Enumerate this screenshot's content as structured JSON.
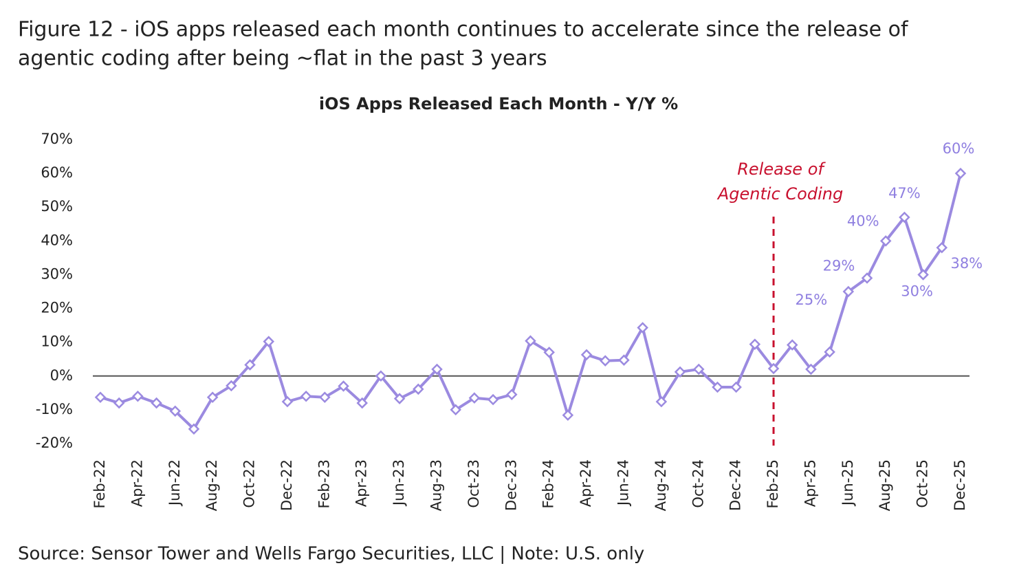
{
  "title": [
    "Figure 12 - iOS apps released each month continues to accelerate since the release of",
    "agentic coding after being ~flat in the past 3 years"
  ],
  "source": "Source: Sensor Tower and Wells Fargo Securities, LLC | Note: U.S. only",
  "chart_data": {
    "type": "line",
    "title": "iOS Apps Released Each Month - Y/Y %",
    "categories": [
      "Feb-22",
      null,
      "Apr-22",
      null,
      "Jun-22",
      null,
      "Aug-22",
      null,
      "Oct-22",
      null,
      "Dec-22",
      null,
      "Feb-23",
      null,
      "Apr-23",
      null,
      "Jun-23",
      null,
      "Aug-23",
      null,
      "Oct-23",
      null,
      "Dec-23",
      null,
      "Feb-24",
      null,
      "Apr-24",
      null,
      "Jun-24",
      null,
      "Aug-24",
      null,
      "Oct-24",
      null,
      "Dec-24",
      null,
      "Feb-25",
      null,
      "Apr-25",
      null,
      "Jun-25",
      null,
      "Aug-25",
      null,
      "Oct-25",
      null,
      "Dec-25"
    ],
    "values": [
      -6.3,
      -8,
      -6,
      -8,
      -10.4,
      -15.7,
      -6.3,
      -2.9,
      3.3,
      10.2,
      -7.6,
      -6,
      -6.3,
      -3,
      -8,
      0,
      -6.7,
      -3.9,
      2,
      -10,
      -6.5,
      -7,
      -5.5,
      10.4,
      7,
      -11.6,
      6.3,
      4.5,
      4.7,
      14.3,
      -7.6,
      1.2,
      2,
      -3.3,
      -3.3,
      9.4,
      2.2,
      9.2,
      2,
      7.1,
      25,
      29,
      40,
      47,
      30,
      38,
      60
    ],
    "value_labels": [
      null,
      null,
      null,
      null,
      null,
      null,
      null,
      null,
      null,
      null,
      null,
      null,
      null,
      null,
      null,
      null,
      null,
      null,
      null,
      null,
      null,
      null,
      null,
      null,
      null,
      null,
      null,
      null,
      null,
      null,
      null,
      null,
      null,
      null,
      null,
      null,
      null,
      null,
      null,
      null,
      "25%",
      "29%",
      "40%",
      "47%",
      "30%",
      "38%",
      "60%"
    ],
    "color": "#9b8ae0",
    "ylim": [
      -20,
      70
    ],
    "yticks": [
      {
        "value": -20,
        "label": "-20%"
      },
      {
        "value": -10,
        "label": "-10%"
      },
      {
        "value": 0,
        "label": "0%"
      },
      {
        "value": 10,
        "label": "10%"
      },
      {
        "value": 20,
        "label": "20%"
      },
      {
        "value": 30,
        "label": "30%"
      },
      {
        "value": 40,
        "label": "40%"
      },
      {
        "value": 50,
        "label": "50%"
      },
      {
        "value": 60,
        "label": "60%"
      },
      {
        "value": 70,
        "label": "70%"
      }
    ],
    "annotation": {
      "lines": [
        "Release of",
        "Agentic Coding"
      ],
      "x": "Feb-25",
      "color": "#c8102e"
    }
  }
}
